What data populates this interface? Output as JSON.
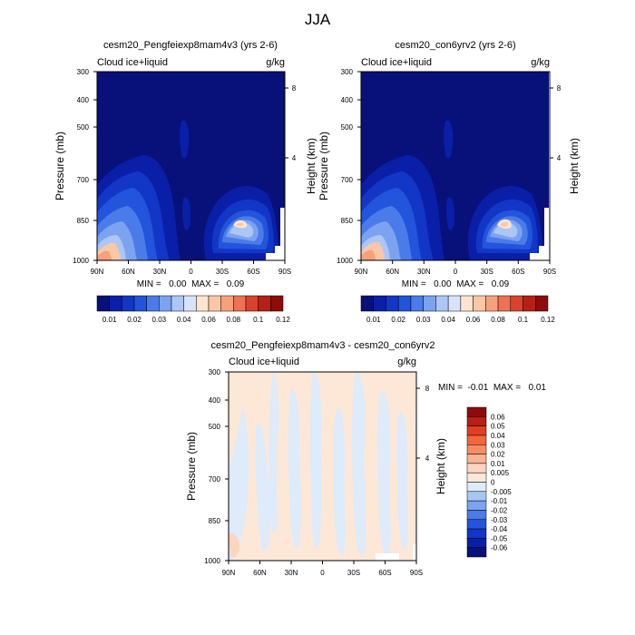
{
  "page": {
    "title": "JJA"
  },
  "chart_data": [
    {
      "type": "heatmap",
      "title": "cesm20_Pengfeiexp8mam4v3 (yrs 2-6)",
      "left_label": "Cloud ice+liquid",
      "right_label": "g/kg",
      "ylabel": "Pressure (mb)",
      "ylabel_right": "Height (km)",
      "x_ticks": [
        "90N",
        "60N",
        "30N",
        "0",
        "30S",
        "60S",
        "90S"
      ],
      "y_ticks": [
        "300",
        "400",
        "500",
        "700",
        "850",
        "1000"
      ],
      "y_right_ticks": [
        "8",
        "4"
      ],
      "stats": "MIN =   0.00  MAX =   0.09",
      "colorbar": {
        "labels": [
          "0.01",
          "0.02",
          "0.03",
          "0.04",
          "0.06",
          "0.08",
          "0.1",
          "0.12"
        ],
        "colors": [
          "#08107a",
          "#0a1fa8",
          "#1236c6",
          "#2254dc",
          "#4a7be8",
          "#7ba3f0",
          "#acc6f6",
          "#d6e4fa",
          "#fde4cf",
          "#fbc7a7",
          "#f7a07e",
          "#ef7254",
          "#d9432d",
          "#b81f16",
          "#8c0b0b"
        ]
      }
    },
    {
      "type": "heatmap",
      "title": "cesm20_con6yrv2 (yrs 2-6)",
      "left_label": "Cloud ice+liquid",
      "right_label": "g/kg",
      "ylabel": "Pressure (mb)",
      "ylabel_right": "Height (km)",
      "x_ticks": [
        "90N",
        "60N",
        "30N",
        "0",
        "30S",
        "60S",
        "90S"
      ],
      "y_ticks": [
        "300",
        "400",
        "500",
        "700",
        "850",
        "1000"
      ],
      "y_right_ticks": [
        "8",
        "4"
      ],
      "stats": "MIN =   0.00  MAX =   0.09",
      "colorbar": {
        "labels": [
          "0.01",
          "0.02",
          "0.03",
          "0.04",
          "0.06",
          "0.08",
          "0.1",
          "0.12"
        ],
        "colors": [
          "#08107a",
          "#0a1fa8",
          "#1236c6",
          "#2254dc",
          "#4a7be8",
          "#7ba3f0",
          "#acc6f6",
          "#d6e4fa",
          "#fde4cf",
          "#fbc7a7",
          "#f7a07e",
          "#ef7254",
          "#d9432d",
          "#b81f16",
          "#8c0b0b"
        ]
      }
    },
    {
      "type": "heatmap",
      "title": "cesm20_Pengfeiexp8mam4v3 - cesm20_con6yrv2",
      "left_label": "Cloud ice+liquid",
      "right_label": "g/kg",
      "ylabel": "Pressure (mb)",
      "ylabel_right": "Height (km)",
      "x_ticks": [
        "90N",
        "60N",
        "30N",
        "0",
        "30S",
        "60S",
        "90S"
      ],
      "y_ticks": [
        "300",
        "400",
        "500",
        "700",
        "850",
        "1000"
      ],
      "y_right_ticks": [
        "8",
        "4"
      ],
      "stats": "MIN =  -0.01  MAX =   0.01",
      "colorbar": {
        "labels": [
          "0.06",
          "0.05",
          "0.04",
          "0.03",
          "0.02",
          "0.01",
          "0.005",
          "0",
          "-0.005",
          "-0.01",
          "-0.02",
          "-0.03",
          "-0.04",
          "-0.05",
          "-0.06"
        ],
        "colors": [
          "#8c0b0b",
          "#b81f16",
          "#e0401f",
          "#f2663c",
          "#f78c64",
          "#fab394",
          "#fcd5bf",
          "#fde8d8",
          "#ddebfb",
          "#a9c6f3",
          "#7ba3f0",
          "#4a7be8",
          "#2254dc",
          "#1236c6",
          "#0a1fa8",
          "#08107a"
        ]
      }
    }
  ]
}
